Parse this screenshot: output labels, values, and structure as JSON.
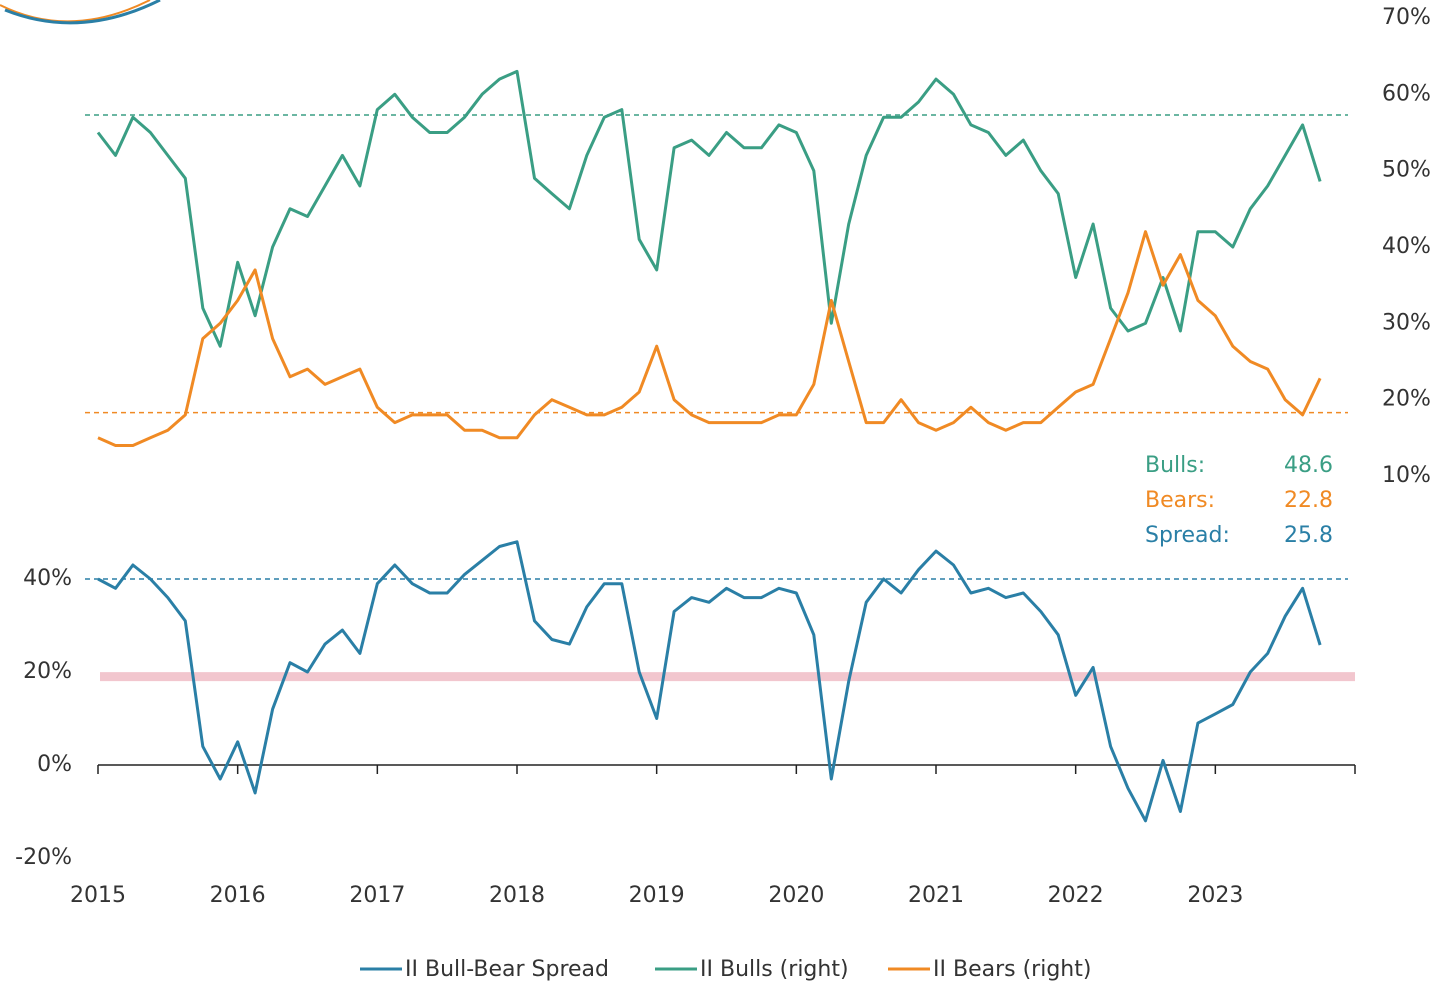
{
  "chart_data": {
    "type": "line",
    "x": [
      2015,
      2015.125,
      2015.25,
      2015.375,
      2015.5,
      2015.625,
      2015.75,
      2015.875,
      2016,
      2016.125,
      2016.25,
      2016.375,
      2016.5,
      2016.625,
      2016.75,
      2016.875,
      2017,
      2017.125,
      2017.25,
      2017.375,
      2017.5,
      2017.625,
      2017.75,
      2017.875,
      2018,
      2018.125,
      2018.25,
      2018.375,
      2018.5,
      2018.625,
      2018.75,
      2018.875,
      2019,
      2019.125,
      2019.25,
      2019.375,
      2019.5,
      2019.625,
      2019.75,
      2019.875,
      2020,
      2020.125,
      2020.25,
      2020.375,
      2020.5,
      2020.625,
      2020.75,
      2020.875,
      2021,
      2021.125,
      2021.25,
      2021.375,
      2021.5,
      2021.625,
      2021.75,
      2021.875,
      2022,
      2022.125,
      2022.25,
      2022.375,
      2022.5,
      2022.625,
      2022.75,
      2022.875,
      2023,
      2023.125,
      2023.25,
      2023.375,
      2023.5,
      2023.625,
      2023.75
    ],
    "series": [
      {
        "name": "II Bull-Bear Spread",
        "color": "#2a7fa6",
        "axis": "y",
        "values": [
          40,
          38,
          43,
          40,
          36,
          31,
          4,
          -3,
          5,
          -6,
          12,
          22,
          20,
          26,
          29,
          24,
          39,
          43,
          39,
          37,
          37,
          41,
          44,
          47,
          48,
          31,
          27,
          26,
          34,
          39,
          39,
          20,
          10,
          33,
          36,
          35,
          38,
          36,
          36,
          38,
          37,
          28,
          -3,
          18,
          35,
          40,
          37,
          42,
          46,
          43,
          37,
          38,
          36,
          37,
          33,
          28,
          15,
          21,
          4,
          -5,
          -12,
          1,
          -10,
          9,
          11,
          13,
          20,
          24,
          32,
          38,
          25.8
        ]
      },
      {
        "name": "II Bulls (right)",
        "color": "#3a9e84",
        "axis": "y2",
        "values": [
          55,
          52,
          57,
          55,
          52,
          49,
          32,
          27,
          38,
          31,
          40,
          45,
          44,
          48,
          52,
          48,
          58,
          60,
          57,
          55,
          55,
          57,
          60,
          62,
          63,
          49,
          47,
          45,
          52,
          57,
          58,
          41,
          37,
          53,
          54,
          52,
          55,
          53,
          53,
          56,
          55,
          50,
          30,
          43,
          52,
          57,
          57,
          59,
          62,
          60,
          56,
          55,
          52,
          54,
          50,
          47,
          36,
          43,
          32,
          29,
          30,
          36,
          29,
          42,
          42,
          40,
          45,
          48,
          52,
          56,
          48.6
        ]
      },
      {
        "name": "II Bears (right)",
        "color": "#f08a24",
        "axis": "y2",
        "values": [
          15,
          14,
          14,
          15,
          16,
          18,
          28,
          30,
          33,
          37,
          28,
          23,
          24,
          22,
          23,
          24,
          19,
          17,
          18,
          18,
          18,
          16,
          16,
          15,
          15,
          18,
          20,
          19,
          18,
          18,
          19,
          21,
          27,
          20,
          18,
          17,
          17,
          17,
          17,
          18,
          18,
          22,
          33,
          25,
          17,
          17,
          20,
          17,
          16,
          17,
          19,
          17,
          16,
          17,
          17,
          19,
          21,
          22,
          28,
          34,
          42,
          35,
          39,
          33,
          31,
          27,
          25,
          24,
          20,
          18,
          22.8
        ]
      }
    ],
    "xlim": [
      2015,
      2024
    ],
    "xticks": [
      2015,
      2016,
      2017,
      2018,
      2019,
      2020,
      2021,
      2022,
      2023
    ],
    "ylim": [
      -20,
      40
    ],
    "yticks": [
      {
        "value": -20,
        "label": "-20%"
      },
      {
        "value": 0,
        "label": "0%"
      },
      {
        "value": 20,
        "label": "20%"
      },
      {
        "value": 40,
        "label": "40%"
      }
    ],
    "y2lim": [
      10,
      70
    ],
    "y2ticks": [
      {
        "value": 10,
        "label": "10%"
      },
      {
        "value": 20,
        "label": "20%"
      },
      {
        "value": 30,
        "label": "30%"
      },
      {
        "value": 40,
        "label": "40%"
      },
      {
        "value": 50,
        "label": "50%"
      },
      {
        "value": 60,
        "label": "60%"
      },
      {
        "value": 70,
        "label": "70%"
      }
    ],
    "reference_lines": [
      {
        "axis": "y2",
        "value": 57.3,
        "style": "dashed",
        "color": "#3a9e84"
      },
      {
        "axis": "y2",
        "value": 18.3,
        "style": "dashed",
        "color": "#f08a24"
      },
      {
        "axis": "y",
        "value": 40,
        "style": "dashed",
        "color": "#2a7fa6"
      },
      {
        "axis": "y",
        "value": 19,
        "style": "band",
        "color": "#f2c6ce"
      }
    ],
    "annotations": [
      {
        "label": "Bulls:",
        "value": 48.6,
        "color": "#3a9e84"
      },
      {
        "label": "Bears:",
        "value": 22.8,
        "color": "#f08a24"
      },
      {
        "label": "Spread:",
        "value": 25.8,
        "color": "#2a7fa6"
      }
    ],
    "legend": "bottom"
  }
}
